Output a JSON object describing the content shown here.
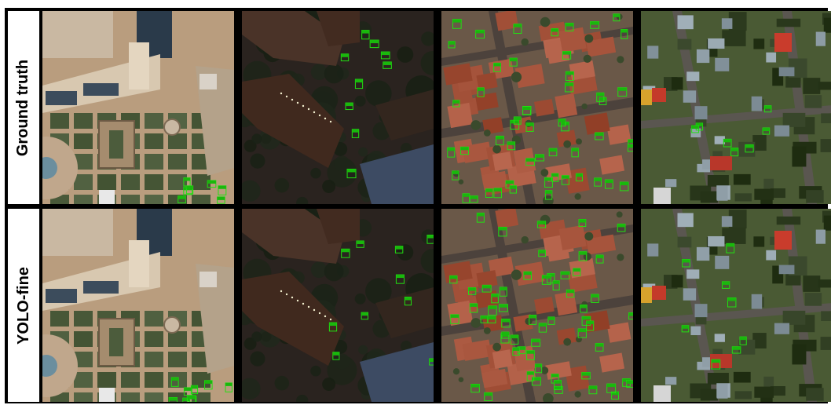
{
  "rows": [
    {
      "label": "Ground truth"
    },
    {
      "label": "YOLO-fine"
    }
  ],
  "scenes": [
    {
      "name": "garden-plaza",
      "palette": {
        "base": "#9a8065",
        "ground": "#b99d7e",
        "green": "#4c5c3c",
        "roof": "#d8c8b0",
        "pool": "#2a3a4a"
      }
    },
    {
      "name": "dark-campus",
      "palette": {
        "base": "#2a231f",
        "ground": "#3c2f27",
        "green": "#1c2418",
        "roof": "#4a3328",
        "pool": "#2f3a48"
      }
    },
    {
      "name": "red-roof-district",
      "palette": {
        "base": "#5b4b3f",
        "ground": "#6a5848",
        "green": "#3a4a2c",
        "roof": "#a4523a",
        "pool": "#7a6a60"
      }
    },
    {
      "name": "suburban-green",
      "palette": {
        "base": "#3f4a2e",
        "ground": "#4a5a34",
        "green": "#2c3a1e",
        "roof": "#8c9ba4",
        "pool": "#c93c2c"
      }
    }
  ],
  "detection_color": "#22e012",
  "detection_tag_color": "#19b80c"
}
